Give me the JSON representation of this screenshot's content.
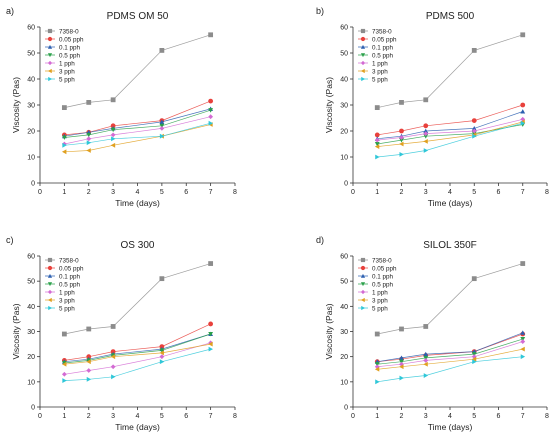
{
  "legend_labels": [
    "7358-0",
    "0.05 pph",
    "0.1 pph",
    "0.5 pph",
    "1 pph",
    "3 pph",
    "5 pph"
  ],
  "series_styles": [
    {
      "color": "#8c8c8c",
      "marker": "square"
    },
    {
      "color": "#e8413c",
      "marker": "circle"
    },
    {
      "color": "#2b5fb0",
      "marker": "triangle-up"
    },
    {
      "color": "#2aa04a",
      "marker": "triangle-down"
    },
    {
      "color": "#d36bd3",
      "marker": "diamond"
    },
    {
      "color": "#e0a020",
      "marker": "triangle-left"
    },
    {
      "color": "#2fc7d8",
      "marker": "triangle-right"
    }
  ],
  "chart_data": [
    {
      "type": "line",
      "panel_label": "a)",
      "title": "PDMS OM 50",
      "xlabel": "Time (days)",
      "ylabel": "Viscosity (Pas)",
      "x": [
        1,
        2,
        3,
        5,
        7
      ],
      "xlim": [
        0,
        8
      ],
      "ylim": [
        0,
        60
      ],
      "xticks": [
        0,
        1,
        2,
        3,
        4,
        5,
        6,
        7,
        8
      ],
      "yticks": [
        0,
        10,
        20,
        30,
        40,
        50,
        60
      ],
      "grid": false,
      "legend": "top-left",
      "series": [
        {
          "name": "7358-0",
          "values": [
            29,
            31,
            32,
            51,
            57
          ]
        },
        {
          "name": "0.05 pph",
          "values": [
            18.5,
            19.5,
            22,
            24,
            31.5
          ]
        },
        {
          "name": "0.1 pph",
          "values": [
            18,
            19.5,
            21,
            23.5,
            28.5
          ]
        },
        {
          "name": "0.5 pph",
          "values": [
            17.5,
            18.5,
            20.5,
            22,
            28
          ]
        },
        {
          "name": "1 pph",
          "values": [
            15,
            17,
            18.5,
            21,
            25.5
          ]
        },
        {
          "name": "3 pph",
          "values": [
            12,
            12.5,
            14.5,
            18,
            22.5
          ]
        },
        {
          "name": "5 pph",
          "values": [
            14.5,
            15.5,
            17,
            18,
            23
          ]
        }
      ]
    },
    {
      "type": "line",
      "panel_label": "b)",
      "title": "PDMS 500",
      "xlabel": "Time (days)",
      "ylabel": "Viscosity (Pas)",
      "x": [
        1,
        2,
        3,
        5,
        7
      ],
      "xlim": [
        0,
        8
      ],
      "ylim": [
        0,
        60
      ],
      "xticks": [
        0,
        1,
        2,
        3,
        4,
        5,
        6,
        7,
        8
      ],
      "yticks": [
        0,
        10,
        20,
        30,
        40,
        50,
        60
      ],
      "grid": false,
      "legend": "top-left",
      "series": [
        {
          "name": "7358-0",
          "values": [
            29,
            31,
            32,
            51,
            57
          ]
        },
        {
          "name": "0.05 pph",
          "values": [
            18.5,
            20,
            22,
            24,
            30
          ]
        },
        {
          "name": "0.1 pph",
          "values": [
            17,
            18,
            20,
            21,
            27.5
          ]
        },
        {
          "name": "0.5 pph",
          "values": [
            15,
            16.5,
            18,
            19,
            22.5
          ]
        },
        {
          "name": "1 pph",
          "values": [
            16.5,
            17.5,
            19,
            20,
            24.5
          ]
        },
        {
          "name": "3 pph",
          "values": [
            14,
            15,
            16,
            18.5,
            23.5
          ]
        },
        {
          "name": "5 pph",
          "values": [
            10,
            11,
            12.5,
            18,
            23
          ]
        }
      ]
    },
    {
      "type": "line",
      "panel_label": "c)",
      "title": "OS 300",
      "xlabel": "Time (days)",
      "ylabel": "Viscosity (Pas)",
      "x": [
        1,
        2,
        3,
        5,
        7
      ],
      "xlim": [
        0,
        8
      ],
      "ylim": [
        0,
        60
      ],
      "xticks": [
        0,
        1,
        2,
        3,
        4,
        5,
        6,
        7,
        8
      ],
      "yticks": [
        0,
        10,
        20,
        30,
        40,
        50,
        60
      ],
      "grid": false,
      "legend": "top-left",
      "series": [
        {
          "name": "7358-0",
          "values": [
            29,
            31,
            32,
            51,
            57
          ]
        },
        {
          "name": "0.05 pph",
          "values": [
            18.5,
            20,
            22,
            24,
            33
          ]
        },
        {
          "name": "0.1 pph",
          "values": [
            18,
            19,
            21,
            23,
            29
          ]
        },
        {
          "name": "0.5 pph",
          "values": [
            17.5,
            18.5,
            20.5,
            22.5,
            29
          ]
        },
        {
          "name": "1 pph",
          "values": [
            13,
            14.5,
            16,
            20,
            25.5
          ]
        },
        {
          "name": "3 pph",
          "values": [
            17,
            18,
            20,
            21.5,
            25
          ]
        },
        {
          "name": "5 pph",
          "values": [
            10.5,
            11,
            12,
            18,
            23
          ]
        }
      ]
    },
    {
      "type": "line",
      "panel_label": "d)",
      "title": "SILOL 350F",
      "xlabel": "Time (days)",
      "ylabel": "Viscosity (Pas)",
      "x": [
        1,
        2,
        3,
        5,
        7
      ],
      "xlim": [
        0,
        8
      ],
      "ylim": [
        0,
        60
      ],
      "xticks": [
        0,
        1,
        2,
        3,
        4,
        5,
        6,
        7,
        8
      ],
      "yticks": [
        0,
        10,
        20,
        30,
        40,
        50,
        60
      ],
      "grid": false,
      "legend": "top-left",
      "series": [
        {
          "name": "7358-0",
          "values": [
            29,
            31,
            32,
            51,
            57
          ]
        },
        {
          "name": "0.05 pph",
          "values": [
            18,
            19,
            20.5,
            22,
            29
          ]
        },
        {
          "name": "0.1 pph",
          "values": [
            18,
            19.5,
            21,
            22,
            29.5
          ]
        },
        {
          "name": "0.5 pph",
          "values": [
            17,
            18,
            19.5,
            21,
            27
          ]
        },
        {
          "name": "1 pph",
          "values": [
            16,
            17,
            18.5,
            20,
            26
          ]
        },
        {
          "name": "3 pph",
          "values": [
            15,
            16,
            17,
            19,
            23
          ]
        },
        {
          "name": "5 pph",
          "values": [
            10,
            11.5,
            12.5,
            18,
            20
          ]
        }
      ]
    }
  ]
}
